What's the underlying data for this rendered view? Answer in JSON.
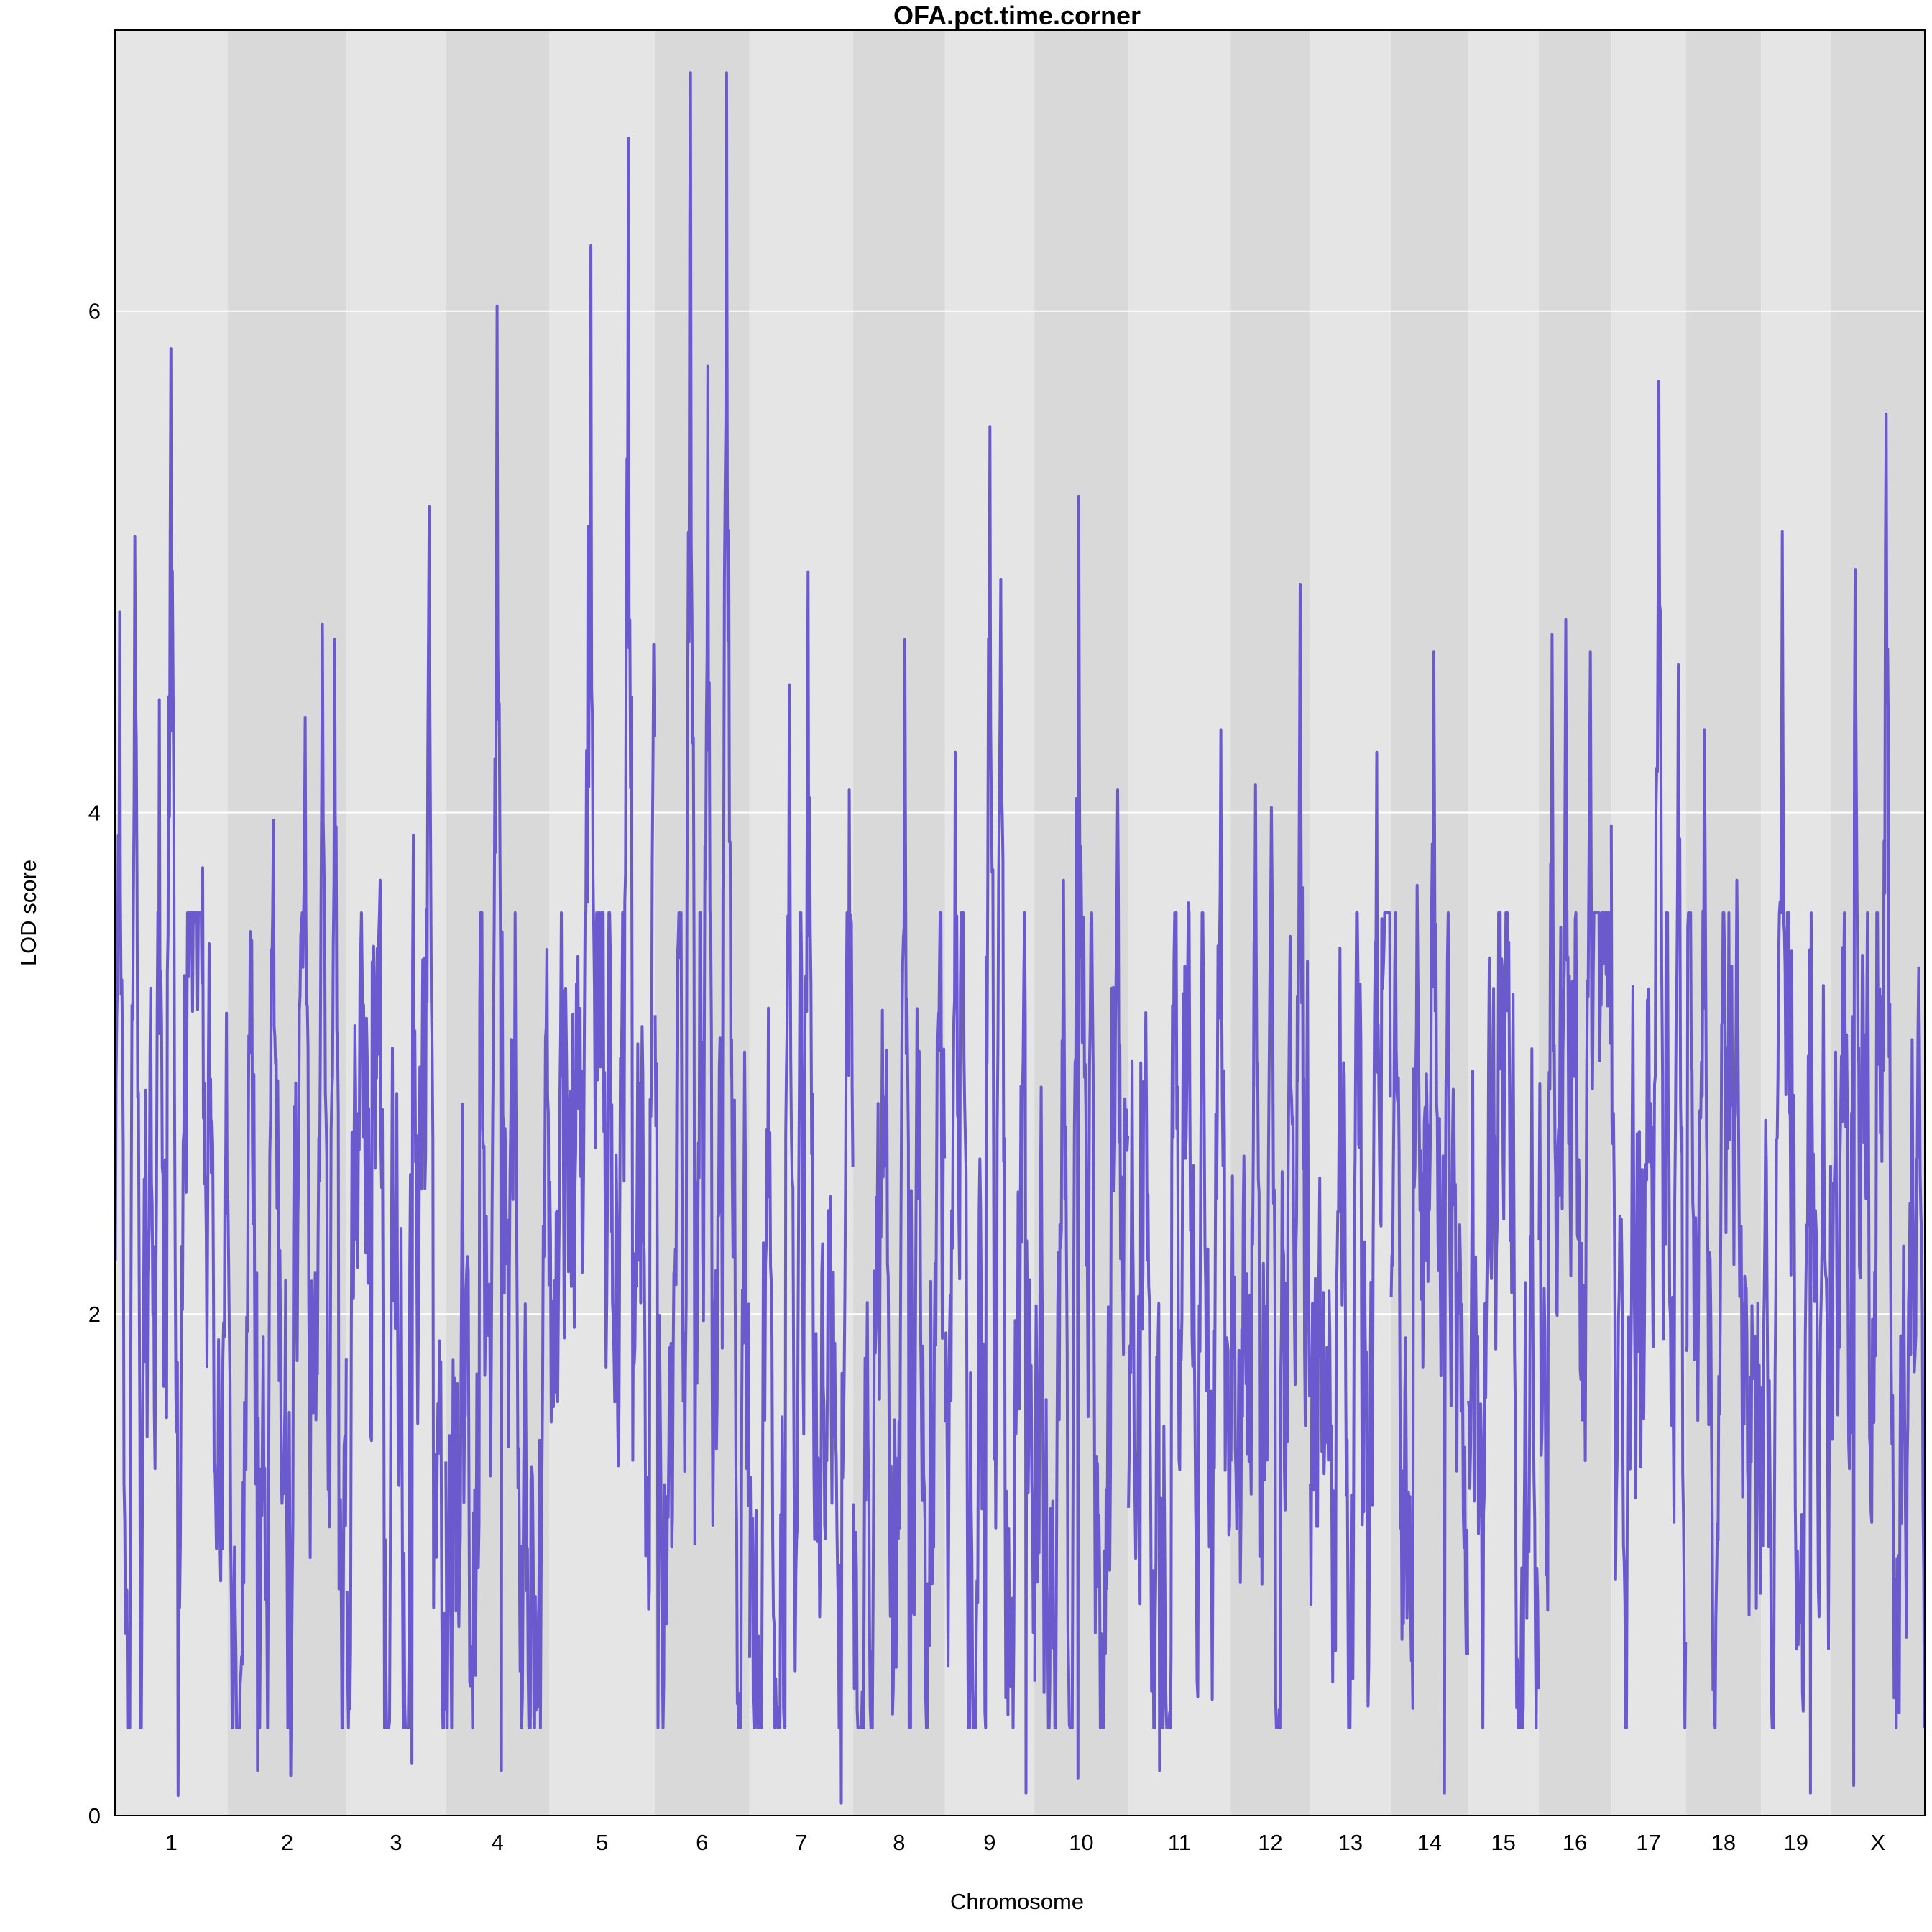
{
  "chart_data": {
    "type": "line",
    "title": "OFA.pct.time.corner",
    "xlabel": "Chromosome",
    "ylabel": "LOD score",
    "ylim": [
      0,
      7.12
    ],
    "yticks": [
      0,
      2,
      4,
      6
    ],
    "grid": true,
    "legend": "none",
    "x_domain": [
      1,
      2508
    ],
    "chromosomes": [
      {
        "label": "1",
        "start": 1,
        "end": 156
      },
      {
        "label": "2",
        "start": 157,
        "end": 321
      },
      {
        "label": "3",
        "start": 322,
        "end": 458
      },
      {
        "label": "4",
        "start": 459,
        "end": 602
      },
      {
        "label": "5",
        "start": 603,
        "end": 748
      },
      {
        "label": "6",
        "start": 749,
        "end": 879
      },
      {
        "label": "7",
        "start": 880,
        "end": 1023
      },
      {
        "label": "8",
        "start": 1024,
        "end": 1150
      },
      {
        "label": "9",
        "start": 1151,
        "end": 1274
      },
      {
        "label": "10",
        "start": 1275,
        "end": 1404
      },
      {
        "label": "11",
        "start": 1405,
        "end": 1546
      },
      {
        "label": "12",
        "start": 1547,
        "end": 1656
      },
      {
        "label": "13",
        "start": 1657,
        "end": 1768
      },
      {
        "label": "14",
        "start": 1769,
        "end": 1875
      },
      {
        "label": "15",
        "start": 1876,
        "end": 1973
      },
      {
        "label": "16",
        "start": 1974,
        "end": 2073
      },
      {
        "label": "17",
        "start": 2074,
        "end": 2177
      },
      {
        "label": "18",
        "start": 2178,
        "end": 2281
      },
      {
        "label": "19",
        "start": 2282,
        "end": 2378
      },
      {
        "label": "X",
        "start": 2379,
        "end": 2508
      }
    ],
    "series": [
      {
        "color": "#6a5acd",
        "peaks": [
          {
            "x": 7,
            "y": 4.8
          },
          {
            "x": 28,
            "y": 5.1
          },
          {
            "x": 62,
            "y": 4.45
          },
          {
            "x": 78,
            "y": 5.85
          },
          {
            "x": 97,
            "y": 3.35
          },
          {
            "x": 122,
            "y": 3.78
          },
          {
            "x": 155,
            "y": 3.2
          },
          {
            "x": 220,
            "y": 3.97
          },
          {
            "x": 264,
            "y": 4.38
          },
          {
            "x": 288,
            "y": 4.75
          },
          {
            "x": 305,
            "y": 4.69
          },
          {
            "x": 368,
            "y": 3.73
          },
          {
            "x": 414,
            "y": 3.91
          },
          {
            "x": 436,
            "y": 5.22
          },
          {
            "x": 530,
            "y": 6.02
          },
          {
            "x": 656,
            "y": 5.14
          },
          {
            "x": 660,
            "y": 6.26
          },
          {
            "x": 712,
            "y": 6.69
          },
          {
            "x": 747,
            "y": 4.67
          },
          {
            "x": 798,
            "y": 6.95
          },
          {
            "x": 822,
            "y": 5.78
          },
          {
            "x": 848,
            "y": 6.95
          },
          {
            "x": 906,
            "y": 3.22
          },
          {
            "x": 935,
            "y": 4.51
          },
          {
            "x": 961,
            "y": 4.96
          },
          {
            "x": 1018,
            "y": 4.09
          },
          {
            "x": 1095,
            "y": 4.69
          },
          {
            "x": 1165,
            "y": 4.24
          },
          {
            "x": 1213,
            "y": 5.54
          },
          {
            "x": 1228,
            "y": 4.93
          },
          {
            "x": 1315,
            "y": 3.73
          },
          {
            "x": 1336,
            "y": 5.26
          },
          {
            "x": 1390,
            "y": 4.09
          },
          {
            "x": 1488,
            "y": 3.64
          },
          {
            "x": 1533,
            "y": 4.33
          },
          {
            "x": 1581,
            "y": 4.11
          },
          {
            "x": 1603,
            "y": 4.02
          },
          {
            "x": 1643,
            "y": 4.91
          },
          {
            "x": 1698,
            "y": 3.46
          },
          {
            "x": 1749,
            "y": 4.24
          },
          {
            "x": 1805,
            "y": 3.71
          },
          {
            "x": 1828,
            "y": 4.64
          },
          {
            "x": 1905,
            "y": 3.42
          },
          {
            "x": 1992,
            "y": 4.71
          },
          {
            "x": 2011,
            "y": 4.77
          },
          {
            "x": 2045,
            "y": 4.64
          },
          {
            "x": 2074,
            "y": 3.95
          },
          {
            "x": 2140,
            "y": 5.72
          },
          {
            "x": 2167,
            "y": 4.59
          },
          {
            "x": 2203,
            "y": 4.33
          },
          {
            "x": 2248,
            "y": 3.73
          },
          {
            "x": 2311,
            "y": 5.12
          },
          {
            "x": 2368,
            "y": 3.31
          },
          {
            "x": 2412,
            "y": 4.97
          },
          {
            "x": 2455,
            "y": 5.59
          },
          {
            "x": 2500,
            "y": 3.38
          }
        ],
        "troughs": [
          {
            "x": 88,
            "y": 0.08
          },
          {
            "x": 198,
            "y": 0.18
          },
          {
            "x": 244,
            "y": 0.16
          },
          {
            "x": 412,
            "y": 0.21
          },
          {
            "x": 536,
            "y": 0.18
          },
          {
            "x": 1007,
            "y": 0.05
          },
          {
            "x": 1263,
            "y": 0.09
          },
          {
            "x": 1335,
            "y": 0.15
          },
          {
            "x": 1448,
            "y": 0.18
          },
          {
            "x": 1843,
            "y": 0.09
          },
          {
            "x": 2350,
            "y": 0.09
          },
          {
            "x": 2410,
            "y": 0.12
          }
        ]
      }
    ]
  }
}
